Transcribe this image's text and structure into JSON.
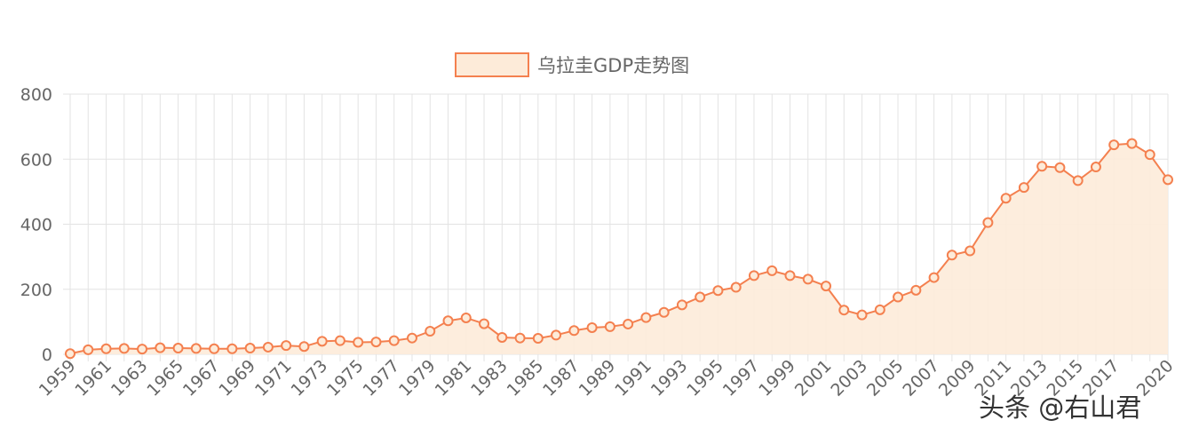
{
  "chart_data": {
    "type": "area",
    "title": "",
    "legend": {
      "label": "乌拉圭GDP走势图",
      "position": "top"
    },
    "xlabel": "",
    "ylabel": "",
    "ylim": [
      0,
      800
    ],
    "yticks": [
      0,
      200,
      400,
      600,
      800
    ],
    "grid": true,
    "colors": {
      "line": "#f4804f",
      "fill": "#fdebd9",
      "grid": "#e3e3e3",
      "text": "#666666"
    },
    "x": [
      1959,
      1960,
      1961,
      1962,
      1963,
      1964,
      1965,
      1966,
      1967,
      1968,
      1969,
      1970,
      1971,
      1972,
      1973,
      1974,
      1975,
      1976,
      1977,
      1978,
      1979,
      1980,
      1981,
      1982,
      1983,
      1984,
      1985,
      1986,
      1987,
      1988,
      1989,
      1990,
      1991,
      1992,
      1993,
      1994,
      1995,
      1996,
      1997,
      1998,
      1999,
      2000,
      2001,
      2002,
      2003,
      2004,
      2005,
      2006,
      2007,
      2008,
      2009,
      2010,
      2011,
      2012,
      2013,
      2014,
      2015,
      2016,
      2017,
      2018,
      2019,
      2020
    ],
    "tick_labels": [
      "1959",
      "1961",
      "1963",
      "1965",
      "1967",
      "1969",
      "1971",
      "1973",
      "1975",
      "1977",
      "1979",
      "1981",
      "1983",
      "1985",
      "1987",
      "1989",
      "1991",
      "1993",
      "1995",
      "1997",
      "1999",
      "2001",
      "2003",
      "2005",
      "2007",
      "2009",
      "2011",
      "2013",
      "2015",
      "2017",
      "2020"
    ],
    "values": [
      2,
      14,
      17,
      18,
      16,
      20,
      19,
      18,
      17,
      17,
      19,
      22,
      27,
      24,
      40,
      42,
      37,
      38,
      42,
      50,
      71,
      103,
      112,
      94,
      52,
      50,
      49,
      59,
      73,
      82,
      85,
      93,
      113,
      129,
      152,
      176,
      196,
      206,
      242,
      257,
      242,
      231,
      210,
      136,
      121,
      137,
      176,
      197,
      236,
      305,
      318,
      405,
      480,
      513,
      578,
      574,
      534,
      576,
      644,
      648,
      614,
      537
    ],
    "series": [
      {
        "name": "乌拉圭GDP走势图"
      }
    ]
  },
  "watermark": "头条 @右山君"
}
